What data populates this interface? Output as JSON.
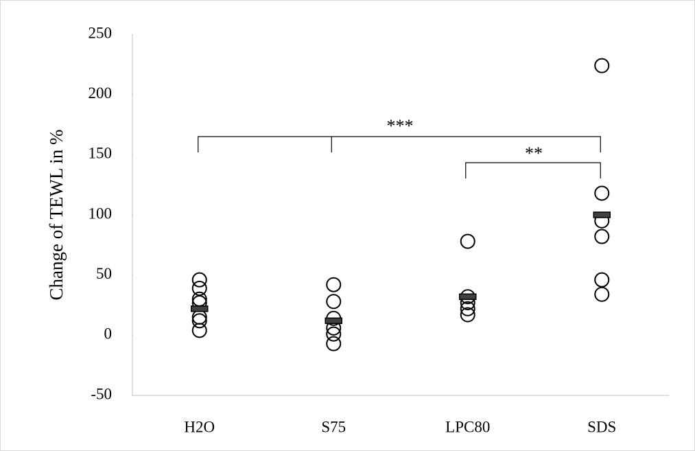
{
  "chart_data": {
    "type": "strip",
    "y_label": "Change of TEWL in %",
    "categories": [
      "H2O",
      "S75",
      "LPC80",
      "SDS"
    ],
    "points": [
      [
        46,
        39,
        30,
        27,
        15,
        12,
        4
      ],
      [
        42,
        28,
        14,
        6,
        1,
        -7
      ],
      [
        78,
        32,
        27,
        22,
        17
      ],
      [
        224,
        118,
        95,
        82,
        46,
        34
      ]
    ],
    "means": [
      22,
      12,
      32,
      100
    ],
    "ylim": [
      -50,
      250
    ],
    "yticks": [
      -50,
      0,
      50,
      100,
      150,
      200,
      250
    ],
    "grid": false,
    "annotations": [
      "***",
      "**"
    ]
  }
}
